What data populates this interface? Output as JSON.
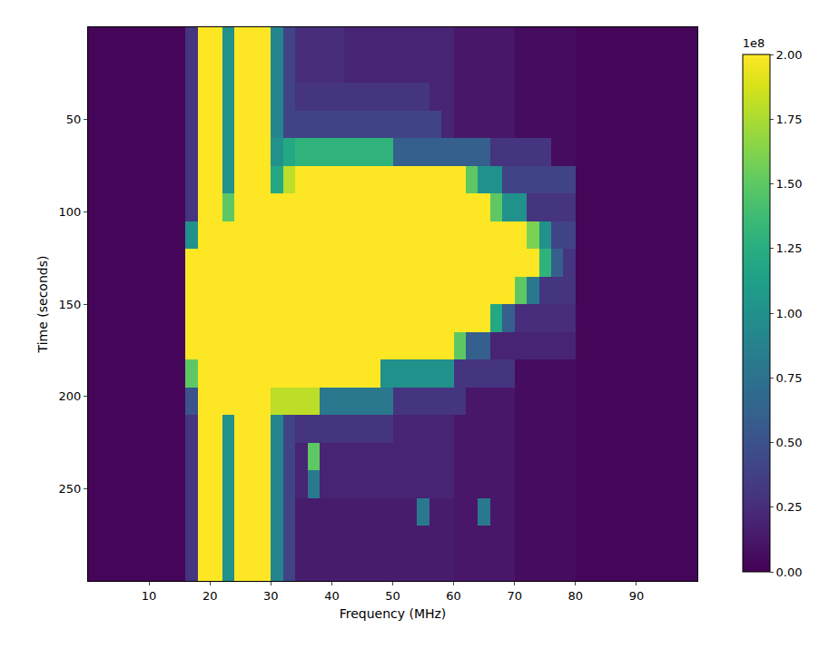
{
  "chart_data": {
    "type": "heatmap",
    "x_label": "Frequency (MHz)",
    "y_label": "Time (seconds)",
    "color": "Viridis",
    "grid": false,
    "xlim": [
      0,
      100
    ],
    "ylim": [
      300,
      0
    ],
    "xticks": [
      10,
      20,
      30,
      40,
      50,
      60,
      70,
      80,
      90
    ],
    "yticks": [
      50,
      100,
      150,
      200,
      250
    ],
    "colorbar": {
      "title": "1e8",
      "range": [
        0,
        2
      ],
      "ticks": [
        {
          "value": 0,
          "label": "0.00"
        },
        {
          "value": 0.25,
          "label": "0.25"
        },
        {
          "value": 0.5,
          "label": "0.50"
        },
        {
          "value": 0.75,
          "label": "0.75"
        },
        {
          "value": 1,
          "label": "1.00"
        },
        {
          "value": 1.25,
          "label": "1.25"
        },
        {
          "value": 1.5,
          "label": "1.50"
        },
        {
          "value": 1.75,
          "label": "1.75"
        },
        {
          "value": 2,
          "label": "2.00"
        }
      ]
    },
    "x": [
      1,
      3,
      5,
      7,
      9,
      11,
      13,
      15,
      17,
      19,
      21,
      23,
      25,
      27,
      29,
      31,
      33,
      35,
      37,
      39,
      41,
      43,
      45,
      47,
      49,
      51,
      53,
      55,
      57,
      59,
      61,
      63,
      65,
      67,
      69,
      71,
      73,
      75,
      77,
      79,
      81,
      83,
      85,
      87,
      89,
      91,
      93,
      95,
      97,
      99
    ],
    "y": [
      7.5,
      22.5,
      37.5,
      52.5,
      67.5,
      82.5,
      97.5,
      112.5,
      127.5,
      142.5,
      157.5,
      172.5,
      187.5,
      202.5,
      217.5,
      232.5,
      247.5,
      262.5,
      277.5,
      292.5
    ],
    "z": [
      [
        0.02,
        0.02,
        0.02,
        0.02,
        0.02,
        0.02,
        0.02,
        0.02,
        0.3,
        2.5,
        2,
        1,
        3,
        3,
        2.5,
        0.9,
        0.4,
        0.25,
        0.25,
        0.25,
        0.25,
        0.2,
        0.2,
        0.2,
        0.2,
        0.2,
        0.2,
        0.2,
        0.2,
        0.2,
        0.12,
        0.12,
        0.12,
        0.12,
        0.12,
        0.06,
        0.06,
        0.06,
        0.06,
        0.06,
        0.02,
        0.02,
        0.02,
        0.02,
        0.02,
        0.02,
        0.02,
        0.02,
        0.02,
        0.02
      ],
      [
        0.02,
        0.02,
        0.02,
        0.02,
        0.02,
        0.02,
        0.02,
        0.02,
        0.3,
        2.5,
        2,
        1,
        3,
        3,
        2.5,
        0.9,
        0.4,
        0.25,
        0.25,
        0.25,
        0.25,
        0.2,
        0.2,
        0.2,
        0.2,
        0.2,
        0.2,
        0.2,
        0.2,
        0.2,
        0.12,
        0.12,
        0.12,
        0.12,
        0.12,
        0.06,
        0.06,
        0.06,
        0.06,
        0.06,
        0.02,
        0.02,
        0.02,
        0.02,
        0.02,
        0.02,
        0.02,
        0.02,
        0.02,
        0.02
      ],
      [
        0.02,
        0.02,
        0.02,
        0.02,
        0.02,
        0.02,
        0.02,
        0.02,
        0.3,
        2.5,
        2,
        1,
        3,
        3,
        2.5,
        0.9,
        0.4,
        0.3,
        0.3,
        0.3,
        0.3,
        0.3,
        0.3,
        0.3,
        0.3,
        0.3,
        0.3,
        0.3,
        0.2,
        0.2,
        0.12,
        0.12,
        0.12,
        0.12,
        0.12,
        0.06,
        0.06,
        0.06,
        0.06,
        0.06,
        0.02,
        0.02,
        0.02,
        0.02,
        0.02,
        0.02,
        0.02,
        0.02,
        0.02,
        0.02
      ],
      [
        0.02,
        0.02,
        0.02,
        0.02,
        0.02,
        0.02,
        0.02,
        0.02,
        0.3,
        2.5,
        2,
        1,
        3,
        3,
        2.5,
        0.9,
        0.4,
        0.4,
        0.4,
        0.4,
        0.4,
        0.4,
        0.4,
        0.4,
        0.4,
        0.4,
        0.4,
        0.4,
        0.4,
        0.2,
        0.12,
        0.12,
        0.12,
        0.12,
        0.12,
        0.06,
        0.06,
        0.06,
        0.06,
        0.06,
        0.02,
        0.02,
        0.02,
        0.02,
        0.02,
        0.02,
        0.02,
        0.02,
        0.02,
        0.02
      ],
      [
        0.02,
        0.02,
        0.02,
        0.02,
        0.02,
        0.02,
        0.02,
        0.02,
        0.3,
        2.5,
        2,
        1,
        3,
        3,
        2.5,
        1,
        1.2,
        1.3,
        1.3,
        1.3,
        1.3,
        1.3,
        1.3,
        1.3,
        1.3,
        0.6,
        0.6,
        0.6,
        0.6,
        0.6,
        0.6,
        0.6,
        0.6,
        0.3,
        0.3,
        0.3,
        0.3,
        0.3,
        0.06,
        0.06,
        0.02,
        0.02,
        0.02,
        0.02,
        0.02,
        0.02,
        0.02,
        0.02,
        0.02,
        0.02
      ],
      [
        0.02,
        0.02,
        0.02,
        0.02,
        0.02,
        0.02,
        0.02,
        0.02,
        0.3,
        2.5,
        2,
        1,
        3,
        3,
        2.5,
        1.2,
        1.8,
        3,
        3,
        3,
        3,
        3,
        3,
        3,
        3,
        3,
        3,
        3,
        3,
        3,
        3,
        1.5,
        1,
        1,
        0.4,
        0.4,
        0.4,
        0.4,
        0.4,
        0.4,
        0.02,
        0.02,
        0.02,
        0.02,
        0.02,
        0.02,
        0.02,
        0.02,
        0.02,
        0.02
      ],
      [
        0.02,
        0.02,
        0.02,
        0.02,
        0.02,
        0.02,
        0.02,
        0.02,
        0.3,
        2.5,
        2,
        1.5,
        3,
        3,
        2.5,
        2,
        3,
        3,
        3,
        3,
        3,
        3,
        3,
        3,
        3,
        3,
        3,
        3,
        3,
        3,
        3,
        3,
        3,
        1.5,
        1,
        1,
        0.3,
        0.3,
        0.3,
        0.3,
        0.02,
        0.02,
        0.02,
        0.02,
        0.02,
        0.02,
        0.02,
        0.02,
        0.02,
        0.02
      ],
      [
        0.02,
        0.02,
        0.02,
        0.02,
        0.02,
        0.02,
        0.02,
        0.02,
        1,
        2.5,
        2,
        2.5,
        3,
        3,
        2.5,
        2.5,
        3,
        3,
        3,
        3,
        3,
        3,
        3,
        3,
        3,
        3,
        3,
        3,
        3,
        3,
        3,
        3,
        3,
        3,
        3,
        3,
        1.6,
        1,
        0.4,
        0.4,
        0.02,
        0.02,
        0.02,
        0.02,
        0.02,
        0.02,
        0.02,
        0.02,
        0.02,
        0.02
      ],
      [
        0.02,
        0.02,
        0.02,
        0.02,
        0.02,
        0.02,
        0.02,
        0.02,
        2.5,
        2.5,
        2,
        3,
        3,
        3,
        2.5,
        2.5,
        3,
        3,
        3,
        3,
        3,
        3,
        3,
        3,
        3,
        3,
        3,
        3,
        3,
        3,
        3,
        3,
        3,
        3,
        3,
        3,
        3,
        1.3,
        0.6,
        0.3,
        0.02,
        0.02,
        0.02,
        0.02,
        0.02,
        0.02,
        0.02,
        0.02,
        0.02,
        0.02
      ],
      [
        0.02,
        0.02,
        0.02,
        0.02,
        0.02,
        0.02,
        0.02,
        0.02,
        3,
        2.5,
        2,
        3,
        3,
        3,
        2.5,
        3,
        3,
        3,
        3,
        3,
        3,
        3,
        3,
        3,
        3,
        3,
        3,
        3,
        3,
        3,
        3,
        3,
        3,
        3,
        3,
        1.5,
        0.8,
        0.3,
        0.3,
        0.3,
        0.02,
        0.02,
        0.02,
        0.02,
        0.02,
        0.02,
        0.02,
        0.02,
        0.02,
        0.02
      ],
      [
        0.02,
        0.02,
        0.02,
        0.02,
        0.02,
        0.02,
        0.02,
        0.02,
        3,
        2.5,
        2,
        3,
        3,
        3,
        2.5,
        3,
        3,
        3,
        3,
        3,
        3,
        3,
        3,
        3,
        3,
        3,
        3,
        3,
        3,
        3,
        3,
        3,
        3,
        1.2,
        0.6,
        0.25,
        0.25,
        0.25,
        0.25,
        0.25,
        0.02,
        0.02,
        0.02,
        0.02,
        0.02,
        0.02,
        0.02,
        0.02,
        0.02,
        0.02
      ],
      [
        0.02,
        0.02,
        0.02,
        0.02,
        0.02,
        0.02,
        0.02,
        0.02,
        2.5,
        2.5,
        2,
        3,
        3,
        3,
        2.5,
        3,
        3,
        3,
        3,
        3,
        3,
        3,
        3,
        3,
        3,
        3,
        3,
        3,
        3,
        3,
        1.5,
        0.6,
        0.6,
        0.2,
        0.2,
        0.2,
        0.2,
        0.2,
        0.2,
        0.2,
        0.02,
        0.02,
        0.02,
        0.02,
        0.02,
        0.02,
        0.02,
        0.02,
        0.02,
        0.02
      ],
      [
        0.02,
        0.02,
        0.02,
        0.02,
        0.02,
        0.02,
        0.02,
        0.02,
        1.5,
        2.5,
        2,
        3,
        3,
        3,
        2.5,
        3,
        3,
        3,
        3,
        3,
        3,
        3,
        3,
        3,
        1,
        1,
        1,
        1,
        1,
        1,
        0.3,
        0.3,
        0.3,
        0.3,
        0.3,
        0.06,
        0.06,
        0.06,
        0.06,
        0.06,
        0.02,
        0.02,
        0.02,
        0.02,
        0.02,
        0.02,
        0.02,
        0.02,
        0.02,
        0.02
      ],
      [
        0.02,
        0.02,
        0.02,
        0.02,
        0.02,
        0.02,
        0.02,
        0.02,
        0.5,
        2.5,
        2,
        2,
        3,
        3,
        2.5,
        1.8,
        1.8,
        1.8,
        1.8,
        0.8,
        0.8,
        0.8,
        0.8,
        0.8,
        0.8,
        0.3,
        0.3,
        0.3,
        0.3,
        0.3,
        0.3,
        0.12,
        0.12,
        0.12,
        0.12,
        0.06,
        0.06,
        0.06,
        0.06,
        0.06,
        0.02,
        0.02,
        0.02,
        0.02,
        0.02,
        0.02,
        0.02,
        0.02,
        0.02,
        0.02
      ],
      [
        0.02,
        0.02,
        0.02,
        0.02,
        0.02,
        0.02,
        0.02,
        0.02,
        0.3,
        2.5,
        2,
        1,
        3,
        3,
        2.5,
        0.9,
        0.4,
        0.3,
        0.3,
        0.3,
        0.3,
        0.3,
        0.3,
        0.3,
        0.3,
        0.2,
        0.2,
        0.2,
        0.2,
        0.2,
        0.12,
        0.12,
        0.12,
        0.12,
        0.12,
        0.06,
        0.06,
        0.06,
        0.06,
        0.06,
        0.02,
        0.02,
        0.02,
        0.02,
        0.02,
        0.02,
        0.02,
        0.02,
        0.02,
        0.02
      ],
      [
        0.02,
        0.02,
        0.02,
        0.02,
        0.02,
        0.02,
        0.02,
        0.02,
        0.3,
        2.5,
        2,
        1,
        3,
        3,
        2.5,
        0.9,
        0.4,
        0.2,
        1.5,
        0.2,
        0.2,
        0.2,
        0.2,
        0.2,
        0.2,
        0.2,
        0.2,
        0.2,
        0.2,
        0.2,
        0.12,
        0.12,
        0.12,
        0.12,
        0.12,
        0.06,
        0.06,
        0.06,
        0.06,
        0.06,
        0.02,
        0.02,
        0.02,
        0.02,
        0.02,
        0.02,
        0.02,
        0.02,
        0.02,
        0.02
      ],
      [
        0.02,
        0.02,
        0.02,
        0.02,
        0.02,
        0.02,
        0.02,
        0.02,
        0.3,
        2.5,
        2,
        1,
        3,
        3,
        2.5,
        0.9,
        0.4,
        0.2,
        0.8,
        0.2,
        0.2,
        0.2,
        0.2,
        0.2,
        0.2,
        0.2,
        0.2,
        0.2,
        0.2,
        0.2,
        0.12,
        0.12,
        0.12,
        0.12,
        0.12,
        0.06,
        0.06,
        0.06,
        0.06,
        0.06,
        0.02,
        0.02,
        0.02,
        0.02,
        0.02,
        0.02,
        0.02,
        0.02,
        0.02,
        0.02
      ],
      [
        0.02,
        0.02,
        0.02,
        0.02,
        0.02,
        0.02,
        0.02,
        0.02,
        0.3,
        2.5,
        2,
        1,
        3,
        3,
        2.5,
        0.9,
        0.4,
        0.15,
        0.15,
        0.15,
        0.15,
        0.15,
        0.15,
        0.15,
        0.15,
        0.15,
        0.15,
        0.8,
        0.15,
        0.15,
        0.12,
        0.12,
        0.8,
        0.12,
        0.12,
        0.06,
        0.06,
        0.06,
        0.06,
        0.06,
        0.02,
        0.02,
        0.02,
        0.02,
        0.02,
        0.02,
        0.02,
        0.02,
        0.02,
        0.02
      ],
      [
        0.02,
        0.02,
        0.02,
        0.02,
        0.02,
        0.02,
        0.02,
        0.02,
        0.3,
        2.5,
        2,
        1,
        3,
        3,
        2.5,
        0.9,
        0.4,
        0.15,
        0.15,
        0.15,
        0.15,
        0.15,
        0.15,
        0.15,
        0.15,
        0.15,
        0.15,
        0.15,
        0.15,
        0.15,
        0.12,
        0.12,
        0.12,
        0.12,
        0.12,
        0.06,
        0.06,
        0.06,
        0.06,
        0.06,
        0.02,
        0.02,
        0.02,
        0.02,
        0.02,
        0.02,
        0.02,
        0.02,
        0.02,
        0.02
      ],
      [
        0.02,
        0.02,
        0.02,
        0.02,
        0.02,
        0.02,
        0.02,
        0.02,
        0.3,
        2.5,
        2,
        1,
        3,
        3,
        2.5,
        0.9,
        0.4,
        0.15,
        0.15,
        0.15,
        0.15,
        0.15,
        0.15,
        0.15,
        0.15,
        0.15,
        0.15,
        0.15,
        0.15,
        0.15,
        0.12,
        0.12,
        0.12,
        0.12,
        0.12,
        0.06,
        0.06,
        0.06,
        0.06,
        0.06,
        0.02,
        0.02,
        0.02,
        0.02,
        0.02,
        0.02,
        0.02,
        0.02,
        0.02,
        0.02
      ]
    ]
  }
}
